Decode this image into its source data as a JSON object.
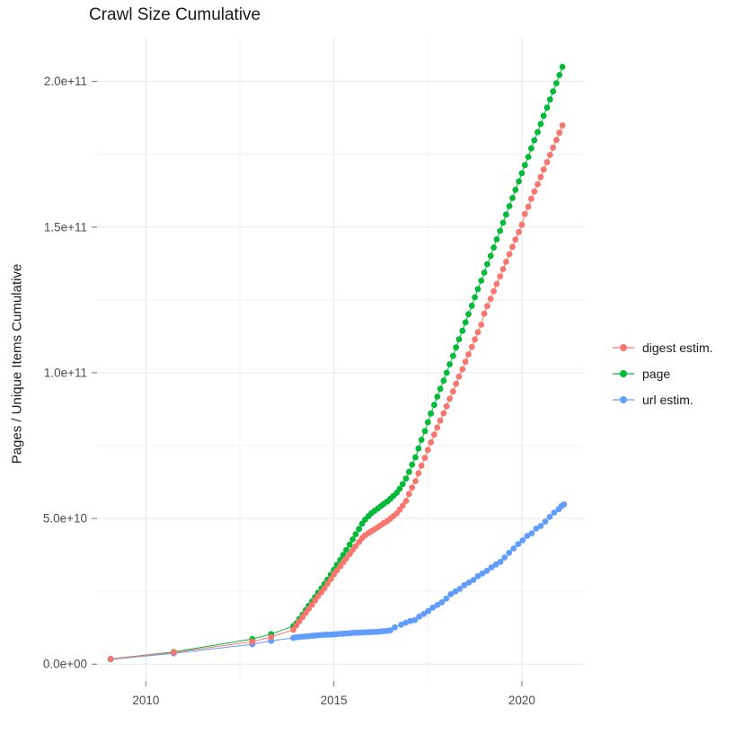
{
  "chart_data": {
    "type": "scatter",
    "title": "Crawl Size Cumulative",
    "xlabel": "",
    "ylabel": "Pages / Unique Items Cumulative",
    "values_unit": "billions (1e9) of pages / unique items",
    "grid": true,
    "legend_position": "right",
    "x_domain": [
      2008.7,
      2021.65
    ],
    "y_domain_e9": [
      -5.8,
      215
    ],
    "x_ticks": [
      {
        "v": 2010,
        "label": "2010"
      },
      {
        "v": 2015,
        "label": "2015"
      },
      {
        "v": 2020,
        "label": "2020"
      }
    ],
    "x_minor": [
      2012.5,
      2017.5
    ],
    "y_ticks": [
      {
        "v": 0,
        "label": "0.0e+00"
      },
      {
        "v": 50,
        "label": "5.0e+10"
      },
      {
        "v": 100,
        "label": "1.0e+11"
      },
      {
        "v": 150,
        "label": "1.5e+11"
      },
      {
        "v": 200,
        "label": "2.0e+11"
      }
    ],
    "y_minor": [
      25,
      75,
      125,
      175
    ],
    "colors": {
      "grid_major": "#e8e8e8",
      "grid_minor": "#f3f3f3",
      "tick": "#777777",
      "axis_text": "#4d4d4d",
      "title": "#1a1a1a"
    },
    "draw_order": [
      2,
      1,
      0
    ],
    "series": [
      {
        "id": "digest-estim",
        "name": "digest estim.",
        "color": "#F8766D",
        "points": [
          [
            2009.06,
            1.8
          ],
          [
            2010.74,
            4.0
          ],
          [
            2012.83,
            7.7
          ],
          [
            2013.33,
            9.3
          ],
          [
            2013.92,
            11.8
          ],
          [
            2014.0,
            13.3
          ],
          [
            2014.08,
            14.7
          ],
          [
            2014.17,
            16.2
          ],
          [
            2014.25,
            17.6
          ],
          [
            2014.33,
            19.0
          ],
          [
            2014.42,
            20.4
          ],
          [
            2014.5,
            21.9
          ],
          [
            2014.58,
            23.3
          ],
          [
            2014.67,
            24.7
          ],
          [
            2014.75,
            26.1
          ],
          [
            2014.83,
            27.6
          ],
          [
            2014.92,
            29.2
          ],
          [
            2015.0,
            30.8
          ],
          [
            2015.08,
            32.2
          ],
          [
            2015.17,
            33.6
          ],
          [
            2015.25,
            35.0
          ],
          [
            2015.33,
            36.3
          ],
          [
            2015.42,
            37.8
          ],
          [
            2015.5,
            39.2
          ],
          [
            2015.58,
            40.5
          ],
          [
            2015.67,
            41.9
          ],
          [
            2015.75,
            43.3
          ],
          [
            2015.83,
            44.2
          ],
          [
            2015.92,
            45.0
          ],
          [
            2016.0,
            45.6
          ],
          [
            2016.08,
            46.3
          ],
          [
            2016.17,
            47.0
          ],
          [
            2016.25,
            47.7
          ],
          [
            2016.33,
            48.4
          ],
          [
            2016.42,
            49.1
          ],
          [
            2016.5,
            49.9
          ],
          [
            2016.58,
            50.8
          ],
          [
            2016.67,
            51.7
          ],
          [
            2016.75,
            53.0
          ],
          [
            2016.83,
            54.4
          ],
          [
            2016.92,
            56.0
          ],
          [
            2017.0,
            58.4
          ],
          [
            2017.08,
            60.6
          ],
          [
            2017.17,
            62.8
          ],
          [
            2017.25,
            65.5
          ],
          [
            2017.33,
            68.1
          ],
          [
            2017.42,
            70.8
          ],
          [
            2017.5,
            73.5
          ],
          [
            2017.58,
            76.1
          ],
          [
            2017.67,
            78.8
          ],
          [
            2017.75,
            81.2
          ],
          [
            2017.83,
            83.6
          ],
          [
            2017.92,
            86.1
          ],
          [
            2018.0,
            88.5
          ],
          [
            2018.08,
            91.1
          ],
          [
            2018.17,
            93.6
          ],
          [
            2018.25,
            96.2
          ],
          [
            2018.33,
            98.7
          ],
          [
            2018.42,
            101.2
          ],
          [
            2018.5,
            103.8
          ],
          [
            2018.58,
            106.3
          ],
          [
            2018.67,
            108.9
          ],
          [
            2018.75,
            111.4
          ],
          [
            2018.83,
            113.9
          ],
          [
            2018.92,
            116.5
          ],
          [
            2019.0,
            120.3
          ],
          [
            2019.08,
            122.9
          ],
          [
            2019.17,
            125.4
          ],
          [
            2019.25,
            128.0
          ],
          [
            2019.33,
            130.5
          ],
          [
            2019.42,
            133.1
          ],
          [
            2019.5,
            135.6
          ],
          [
            2019.58,
            138.1
          ],
          [
            2019.67,
            140.7
          ],
          [
            2019.75,
            143.2
          ],
          [
            2019.83,
            145.7
          ],
          [
            2019.92,
            148.3
          ],
          [
            2020.0,
            150.8
          ],
          [
            2020.08,
            154.5
          ],
          [
            2020.17,
            157.0
          ],
          [
            2020.25,
            159.7
          ],
          [
            2020.33,
            162.2
          ],
          [
            2020.42,
            164.7
          ],
          [
            2020.5,
            167.2
          ],
          [
            2020.58,
            169.8
          ],
          [
            2020.67,
            172.3
          ],
          [
            2020.75,
            174.8
          ],
          [
            2020.83,
            177.3
          ],
          [
            2020.92,
            179.9
          ],
          [
            2021.0,
            182.4
          ],
          [
            2021.08,
            184.9
          ]
        ]
      },
      {
        "id": "page",
        "name": "page",
        "color": "#00BA38",
        "points": [
          [
            2009.06,
            1.8
          ],
          [
            2010.74,
            4.2
          ],
          [
            2012.83,
            8.6
          ],
          [
            2013.33,
            10.3
          ],
          [
            2013.92,
            13.0
          ],
          [
            2014.0,
            14.0
          ],
          [
            2014.08,
            15.5
          ],
          [
            2014.17,
            17.0
          ],
          [
            2014.25,
            18.5
          ],
          [
            2014.33,
            20.0
          ],
          [
            2014.42,
            21.5
          ],
          [
            2014.5,
            23.0
          ],
          [
            2014.58,
            24.5
          ],
          [
            2014.67,
            26.0
          ],
          [
            2014.75,
            27.5
          ],
          [
            2014.83,
            29.0
          ],
          [
            2014.92,
            30.7
          ],
          [
            2015.0,
            32.4
          ],
          [
            2015.08,
            34.1
          ],
          [
            2015.17,
            35.8
          ],
          [
            2015.25,
            37.5
          ],
          [
            2015.33,
            39.2
          ],
          [
            2015.42,
            41.0
          ],
          [
            2015.5,
            42.8
          ],
          [
            2015.58,
            44.6
          ],
          [
            2015.67,
            46.4
          ],
          [
            2015.75,
            48.2
          ],
          [
            2015.83,
            49.6
          ],
          [
            2015.92,
            50.8
          ],
          [
            2016.0,
            51.8
          ],
          [
            2016.08,
            52.6
          ],
          [
            2016.17,
            53.4
          ],
          [
            2016.25,
            54.2
          ],
          [
            2016.33,
            55.0
          ],
          [
            2016.42,
            55.8
          ],
          [
            2016.5,
            56.7
          ],
          [
            2016.58,
            57.7
          ],
          [
            2016.67,
            58.8
          ],
          [
            2016.75,
            60.2
          ],
          [
            2016.83,
            61.8
          ],
          [
            2016.92,
            63.7
          ],
          [
            2017.0,
            66.0
          ],
          [
            2017.08,
            68.5
          ],
          [
            2017.17,
            71.0
          ],
          [
            2017.25,
            74.0
          ],
          [
            2017.33,
            77.0
          ],
          [
            2017.42,
            80.0
          ],
          [
            2017.5,
            83.0
          ],
          [
            2017.58,
            86.0
          ],
          [
            2017.67,
            89.0
          ],
          [
            2017.75,
            91.8
          ],
          [
            2017.83,
            94.5
          ],
          [
            2017.92,
            97.3
          ],
          [
            2018.0,
            100.0
          ],
          [
            2018.08,
            102.9
          ],
          [
            2018.17,
            105.8
          ],
          [
            2018.25,
            108.7
          ],
          [
            2018.33,
            111.5
          ],
          [
            2018.42,
            114.4
          ],
          [
            2018.5,
            117.3
          ],
          [
            2018.58,
            120.1
          ],
          [
            2018.67,
            123.0
          ],
          [
            2018.75,
            125.9
          ],
          [
            2018.83,
            128.7
          ],
          [
            2018.92,
            131.6
          ],
          [
            2019.0,
            134.4
          ],
          [
            2019.08,
            137.3
          ],
          [
            2019.17,
            140.1
          ],
          [
            2019.25,
            143.0
          ],
          [
            2019.33,
            145.8
          ],
          [
            2019.42,
            148.7
          ],
          [
            2019.5,
            151.5
          ],
          [
            2019.58,
            154.3
          ],
          [
            2019.67,
            157.2
          ],
          [
            2019.75,
            160.0
          ],
          [
            2019.83,
            162.8
          ],
          [
            2019.92,
            165.7
          ],
          [
            2020.0,
            168.5
          ],
          [
            2020.08,
            171.3
          ],
          [
            2020.17,
            174.1
          ],
          [
            2020.25,
            177.0
          ],
          [
            2020.33,
            179.8
          ],
          [
            2020.42,
            182.6
          ],
          [
            2020.5,
            185.4
          ],
          [
            2020.58,
            188.2
          ],
          [
            2020.67,
            191.0
          ],
          [
            2020.75,
            193.8
          ],
          [
            2020.83,
            196.6
          ],
          [
            2020.92,
            199.4
          ],
          [
            2021.0,
            202.2
          ],
          [
            2021.08,
            205.0
          ]
        ]
      },
      {
        "id": "url-estim",
        "name": "url estim.",
        "color": "#619CFF",
        "points": [
          [
            2009.06,
            1.6
          ],
          [
            2010.74,
            3.7
          ],
          [
            2012.83,
            6.8
          ],
          [
            2013.33,
            8.0
          ],
          [
            2013.92,
            9.0
          ],
          [
            2014.0,
            9.2
          ],
          [
            2014.08,
            9.3
          ],
          [
            2014.17,
            9.4
          ],
          [
            2014.25,
            9.5
          ],
          [
            2014.33,
            9.6
          ],
          [
            2014.42,
            9.7
          ],
          [
            2014.5,
            9.8
          ],
          [
            2014.58,
            9.9
          ],
          [
            2014.67,
            10.0
          ],
          [
            2014.75,
            10.05
          ],
          [
            2014.83,
            10.1
          ],
          [
            2014.92,
            10.15
          ],
          [
            2015.0,
            10.2
          ],
          [
            2015.08,
            10.3
          ],
          [
            2015.17,
            10.4
          ],
          [
            2015.25,
            10.45
          ],
          [
            2015.33,
            10.5
          ],
          [
            2015.42,
            10.6
          ],
          [
            2015.5,
            10.7
          ],
          [
            2015.58,
            10.75
          ],
          [
            2015.67,
            10.8
          ],
          [
            2015.75,
            10.85
          ],
          [
            2015.83,
            10.9
          ],
          [
            2015.92,
            10.95
          ],
          [
            2016.0,
            11.0
          ],
          [
            2016.08,
            11.05
          ],
          [
            2016.17,
            11.1
          ],
          [
            2016.25,
            11.2
          ],
          [
            2016.33,
            11.3
          ],
          [
            2016.42,
            11.45
          ],
          [
            2016.5,
            11.6
          ],
          [
            2016.62,
            12.6
          ],
          [
            2016.79,
            13.5
          ],
          [
            2016.91,
            14.2
          ],
          [
            2017.03,
            14.8
          ],
          [
            2017.15,
            15.1
          ],
          [
            2017.27,
            16.3
          ],
          [
            2017.39,
            17.2
          ],
          [
            2017.51,
            18.2
          ],
          [
            2017.63,
            19.4
          ],
          [
            2017.75,
            20.3
          ],
          [
            2017.87,
            21.2
          ],
          [
            2017.99,
            22.5
          ],
          [
            2018.11,
            24.0
          ],
          [
            2018.23,
            24.9
          ],
          [
            2018.35,
            25.8
          ],
          [
            2018.47,
            27.1
          ],
          [
            2018.59,
            28.0
          ],
          [
            2018.71,
            28.9
          ],
          [
            2018.83,
            30.2
          ],
          [
            2018.95,
            31.1
          ],
          [
            2019.07,
            32.0
          ],
          [
            2019.19,
            33.2
          ],
          [
            2019.31,
            34.2
          ],
          [
            2019.43,
            35.1
          ],
          [
            2019.54,
            36.6
          ],
          [
            2019.66,
            38.2
          ],
          [
            2019.78,
            39.7
          ],
          [
            2019.9,
            41.2
          ],
          [
            2020.02,
            42.5
          ],
          [
            2020.14,
            44.0
          ],
          [
            2020.26,
            44.9
          ],
          [
            2020.38,
            46.5
          ],
          [
            2020.5,
            47.4
          ],
          [
            2020.62,
            48.9
          ],
          [
            2020.74,
            50.5
          ],
          [
            2020.86,
            52.0
          ],
          [
            2020.98,
            53.2
          ],
          [
            2021.05,
            54.2
          ],
          [
            2021.12,
            54.8
          ]
        ]
      }
    ]
  }
}
